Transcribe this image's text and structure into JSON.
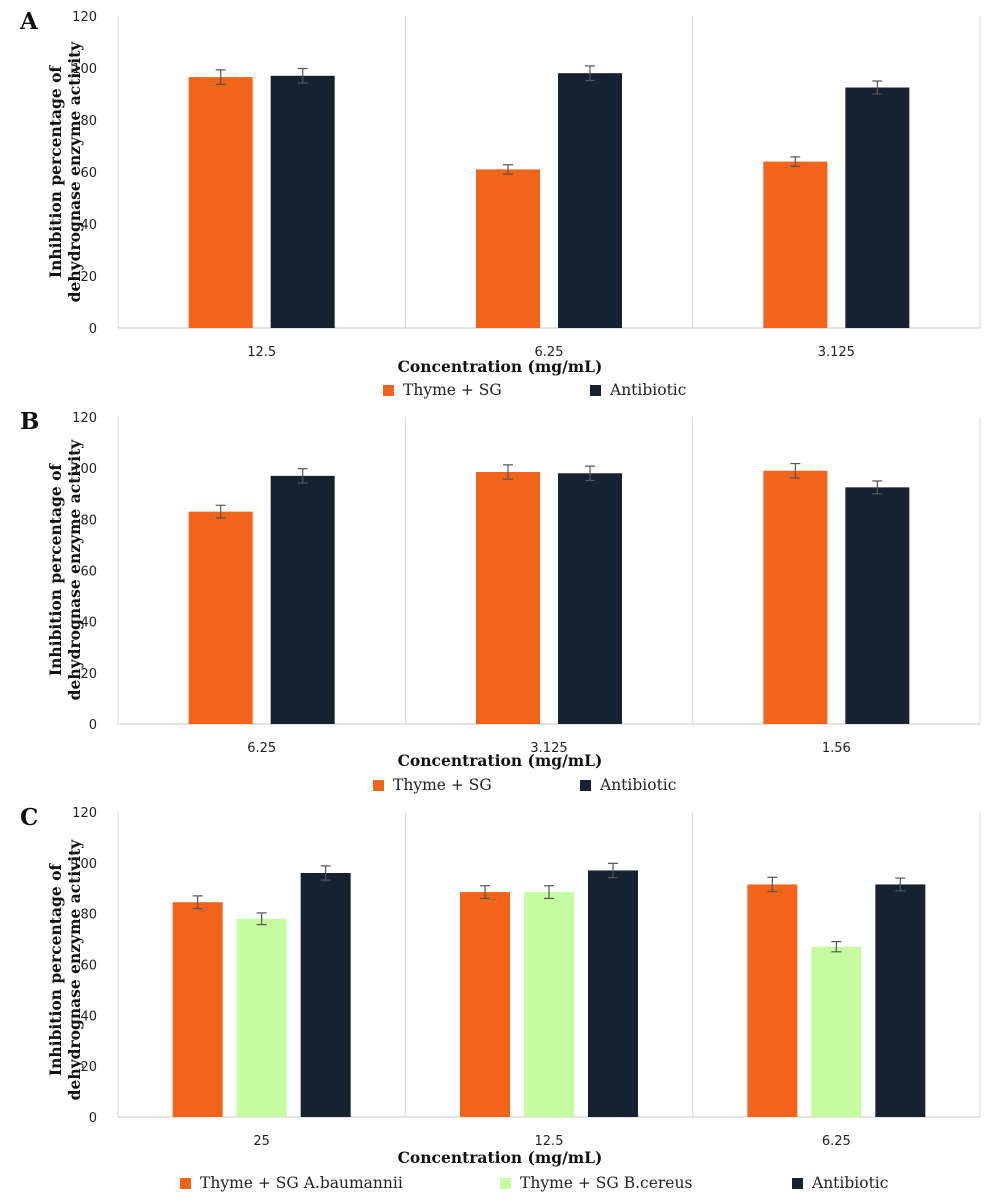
{
  "chart_data": [
    {
      "panel": "A",
      "type": "bar",
      "title": "",
      "xlabel": "Concentration (mg/mL)",
      "ylabel": "Inhibition percentage of dehydrognase enzyme activity",
      "categories": [
        "12.5",
        "6.25",
        "3.125"
      ],
      "ylim": [
        0,
        120
      ],
      "yticks": [
        "0",
        "20",
        "40",
        "60",
        "80",
        "100",
        "120"
      ],
      "grid": "vertical separators between categories",
      "legend_position": "bottom",
      "series": [
        {
          "name": "Thyme + SG",
          "color": "#f26419",
          "values": [
            96.5,
            61,
            64
          ],
          "errors": [
            2.8,
            1.8,
            1.8
          ]
        },
        {
          "name": "Antibiotic",
          "color": "#172231",
          "values": [
            97,
            98,
            92.5
          ],
          "errors": [
            2.8,
            2.8,
            2.5
          ]
        }
      ]
    },
    {
      "panel": "B",
      "type": "bar",
      "title": "",
      "xlabel": "Concentration (mg/mL)",
      "ylabel": "Inhibition percentage of dehydrognase enzyme activity",
      "categories": [
        "6.25",
        "3.125",
        "1.56"
      ],
      "ylim": [
        0,
        120
      ],
      "yticks": [
        "0",
        "20",
        "40",
        "60",
        "80",
        "100",
        "120"
      ],
      "grid": "vertical separators between categories",
      "legend_position": "bottom",
      "series": [
        {
          "name": "Thyme + SG",
          "color": "#f26419",
          "values": [
            83,
            98.5,
            99
          ],
          "errors": [
            2.5,
            2.8,
            2.8
          ]
        },
        {
          "name": "Antibiotic",
          "color": "#172231",
          "values": [
            97,
            98,
            92.5
          ],
          "errors": [
            2.8,
            2.8,
            2.5
          ]
        }
      ]
    },
    {
      "panel": "C",
      "type": "bar",
      "title": "",
      "xlabel": "Concentration (mg/mL)",
      "ylabel": "Inhibition percentage of dehydrognase enzyme activity",
      "categories": [
        "25",
        "12.5",
        "6.25"
      ],
      "ylim": [
        0,
        120
      ],
      "yticks": [
        "0",
        "20",
        "40",
        "60",
        "80",
        "100",
        "120"
      ],
      "grid": "vertical separators between categories",
      "legend_position": "bottom",
      "series": [
        {
          "name": "Thyme + SG A.baumannii",
          "color": "#f26419",
          "values": [
            84.5,
            88.5,
            91.5
          ],
          "errors": [
            2.5,
            2.5,
            2.8
          ]
        },
        {
          "name": "Thyme + SG B.cereus",
          "color": "#c6fba1",
          "values": [
            78,
            88.5,
            67
          ],
          "errors": [
            2.3,
            2.5,
            2.0
          ]
        },
        {
          "name": "Antibiotic",
          "color": "#172231",
          "values": [
            96,
            97,
            91.5
          ],
          "errors": [
            2.8,
            2.8,
            2.5
          ]
        }
      ]
    }
  ]
}
